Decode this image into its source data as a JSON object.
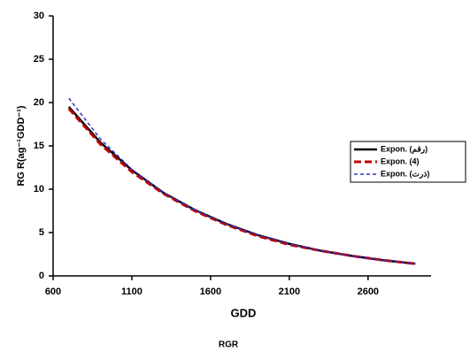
{
  "chart_data": {
    "type": "line",
    "x_label": "GDD",
    "y_label": "RG R(ag⁻¹GDD⁻¹)",
    "caption": "RGR",
    "x": [
      700,
      900,
      1100,
      1300,
      1500,
      1700,
      1900,
      2100,
      2300,
      2500,
      2700,
      2900
    ],
    "series": [
      {
        "name": "Expon. (رقم)",
        "color": "#000000",
        "dash": "none",
        "width": 2.5,
        "values": [
          19.5,
          15.4,
          12.2,
          9.6,
          7.6,
          6.0,
          4.7,
          3.7,
          2.9,
          2.3,
          1.8,
          1.4
        ]
      },
      {
        "name": "Expon. (4)",
        "color": "#c00000",
        "dash": "8 4",
        "width": 3,
        "values": [
          19.3,
          15.2,
          12.0,
          9.5,
          7.5,
          5.9,
          4.6,
          3.6,
          2.9,
          2.3,
          1.8,
          1.4
        ]
      },
      {
        "name": "Expon. (ذرت)",
        "color": "#3030d0",
        "dash": "4 3",
        "width": 1.5,
        "values": [
          20.5,
          15.8,
          12.3,
          9.6,
          7.6,
          6.0,
          4.7,
          3.7,
          2.9,
          2.3,
          1.8,
          1.4
        ]
      }
    ],
    "xlim": [
      600,
      3000
    ],
    "xticks": [
      600,
      1100,
      1600,
      2100,
      2600
    ],
    "ylim": [
      0,
      30
    ],
    "yticks": [
      0,
      5,
      10,
      15,
      20,
      25,
      30
    ]
  }
}
